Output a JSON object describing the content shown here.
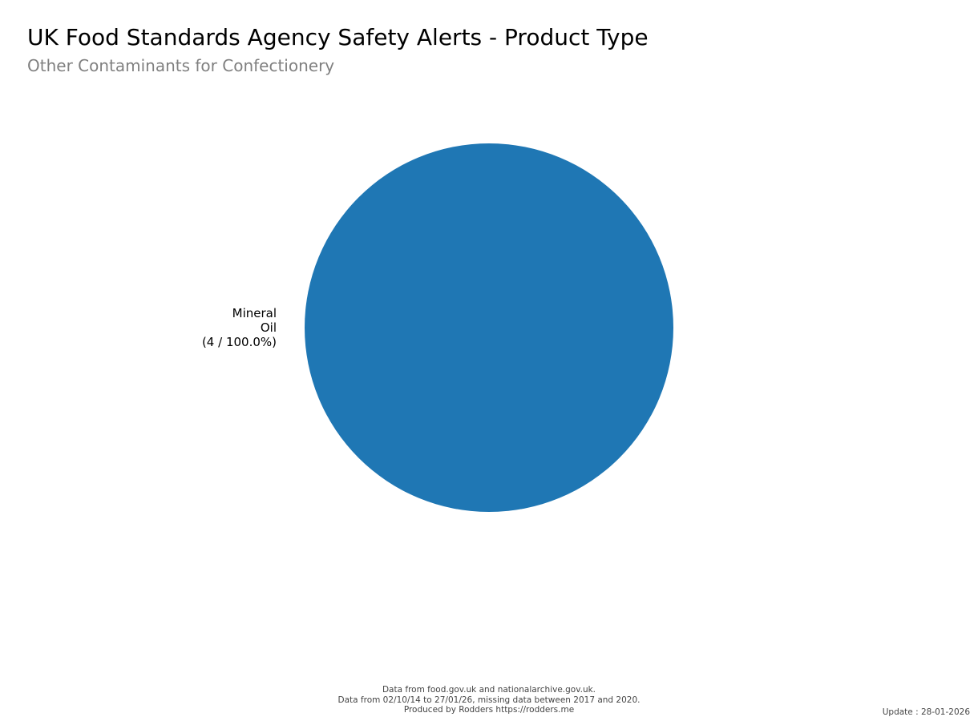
{
  "chart_data": {
    "type": "pie",
    "title": "UK Food Standards Agency Safety Alerts - Product Type",
    "subtitle": "Other Contaminants for Confectionery",
    "slices": [
      {
        "label": "Mineral Oil",
        "label_lines": [
          "Mineral",
          "Oil",
          "(4 / 100.0%)"
        ],
        "value": 4,
        "percent": 100.0,
        "color": "#1f77b4"
      }
    ]
  },
  "footer": {
    "lines": [
      "Data from food.gov.uk and nationalarchive.gov.uk.",
      "Data from 02/10/14 to 27/01/26, missing data between 2017 and 2020.",
      "Produced by Rodders https://rodders.me"
    ],
    "update": "Update : 28-01-2026"
  }
}
